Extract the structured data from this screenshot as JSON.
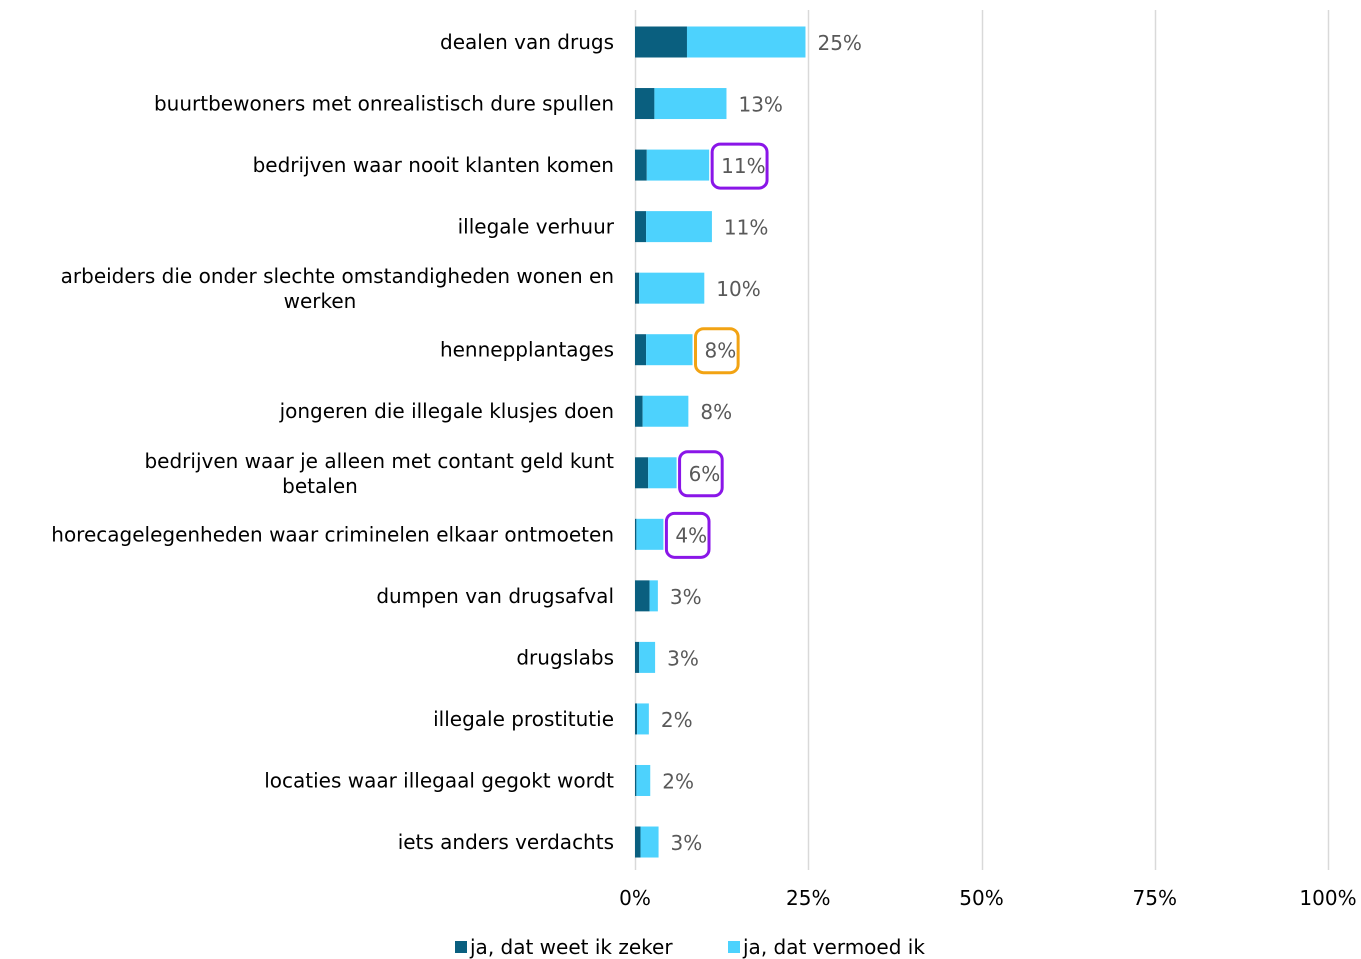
{
  "chart_data": {
    "type": "bar",
    "orientation": "horizontal",
    "stacked": true,
    "categories": [
      "dealen van drugs",
      "buurtbewoners met onrealistisch dure spullen",
      "bedrijven waar nooit klanten komen",
      "illegale verhuur",
      "arbeiders die onder slechte omstandigheden wonen en werken",
      "hennepplantages",
      "jongeren die illegale klusjes doen",
      "bedrijven waar je alleen met contant geld kunt betalen",
      "horecagelegenheden waar criminelen elkaar ontmoeten",
      "dumpen van drugsafval",
      "drugslabs",
      "illegale prostitutie",
      "locaties waar illegaal gegokt wordt",
      "iets anders verdachts"
    ],
    "series": [
      {
        "name": "ja, dat weet ik zeker",
        "color": "#0a5f7f",
        "values": [
          7.5,
          2.8,
          1.7,
          1.6,
          0.6,
          1.6,
          1.1,
          1.9,
          0.2,
          2.1,
          0.6,
          0.3,
          0.2,
          0.8
        ]
      },
      {
        "name": "ja, dat vermoed ik",
        "color": "#4dd2fd",
        "values": [
          17.1,
          10.4,
          9.0,
          9.5,
          9.4,
          6.7,
          6.6,
          4.1,
          3.9,
          1.2,
          2.3,
          1.7,
          2.0,
          2.6
        ]
      }
    ],
    "totals": [
      "25%",
      "13%",
      "11%",
      "11%",
      "10%",
      "8%",
      "8%",
      "6%",
      "4%",
      "3%",
      "3%",
      "2%",
      "2%",
      "3%"
    ],
    "highlights": [
      {
        "index": 2,
        "color": "#8a16e8"
      },
      {
        "index": 5,
        "color": "#f2a313"
      },
      {
        "index": 7,
        "color": "#8a16e8"
      },
      {
        "index": 8,
        "color": "#8a16e8"
      }
    ],
    "x_ticks": [
      0,
      25,
      50,
      75,
      100
    ],
    "x_tick_labels": [
      "0%",
      "25%",
      "50%",
      "75%",
      "100%"
    ],
    "xlim": [
      0,
      100
    ],
    "grid": "vertical",
    "gridline_color": "#d9d9d9",
    "legend_position": "bottom"
  }
}
